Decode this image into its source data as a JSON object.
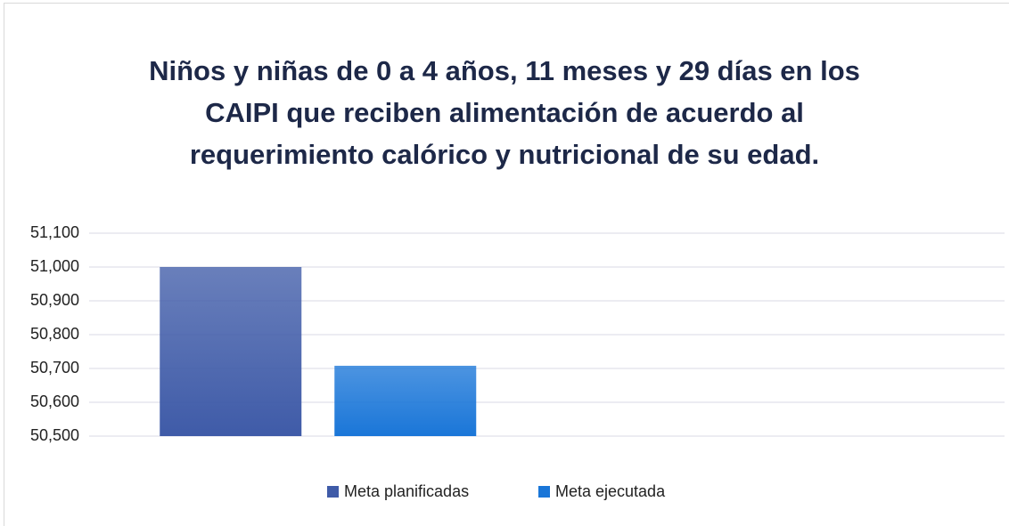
{
  "chart_data": {
    "type": "bar",
    "title": "Niños y niñas de 0 a 4 años, 11 meses y 29 días en los CAIPI que reciben alimentación de acuerdo al requerimiento calórico y nutricional de su edad.",
    "categories": [
      null,
      null
    ],
    "series": [
      {
        "name": "Meta planificadas",
        "color": "#3f5ba8",
        "values": [
          51000,
          null
        ]
      },
      {
        "name": "Meta ejecutada",
        "color": "#1a76d8",
        "values": [
          50708,
          null
        ]
      }
    ],
    "ylim": [
      50500,
      51100
    ],
    "yticks": [
      {
        "value": 50500,
        "label": "50,500"
      },
      {
        "value": 50600,
        "label": "50,600"
      },
      {
        "value": 50700,
        "label": "50,700"
      },
      {
        "value": 50800,
        "label": "50,800"
      },
      {
        "value": 50900,
        "label": "50,900"
      },
      {
        "value": 51000,
        "label": "51,000"
      },
      {
        "value": 51100,
        "label": "51,100"
      }
    ],
    "grid": true,
    "legend": "bottom"
  }
}
